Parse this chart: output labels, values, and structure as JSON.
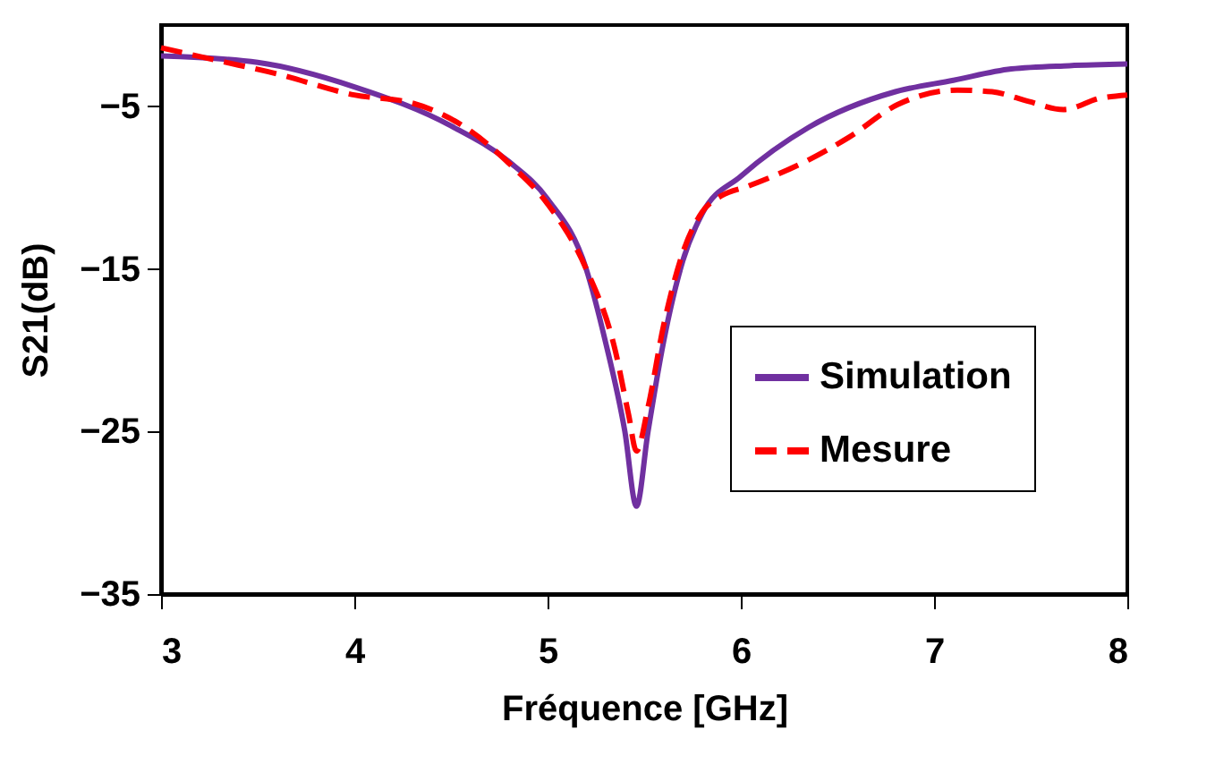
{
  "chart_data": {
    "type": "line",
    "xlabel": "Fréquence [GHz]",
    "ylabel": "S21(dB)",
    "xlim": [
      3,
      8
    ],
    "xticks": [
      3,
      4,
      5,
      6,
      7,
      8
    ],
    "ylim": [
      -35,
      0
    ],
    "yticks": [
      -35,
      -25,
      -15,
      -5
    ],
    "grid": false,
    "legend": "right",
    "marker": "none",
    "series": [
      {
        "name": "Simulation",
        "color": "#7030a0",
        "line_style": "solid",
        "x": [
          3,
          3.5,
          4,
          4.5,
          4.8,
          5.0,
          5.2,
          5.3,
          5.4,
          5.46,
          5.52,
          5.6,
          5.7,
          5.8,
          6.0,
          6.35,
          6.8,
          7.1,
          7.4,
          7.7,
          8
        ],
        "values": [
          -1.9,
          -2.3,
          -3.8,
          -6.2,
          -8.4,
          -10.7,
          -15,
          -19.5,
          -25,
          -29.6,
          -25,
          -19.5,
          -14.5,
          -11.6,
          -9.3,
          -6.3,
          -4.1,
          -3.4,
          -2.7,
          -2.5,
          -2.4
        ]
      },
      {
        "name": "Mesure",
        "color": "#ff0000",
        "line_style": "dashed",
        "x": [
          3,
          3.3,
          3.6,
          4.0,
          4.3,
          4.6,
          4.8,
          5.0,
          5.2,
          5.35,
          5.42,
          5.46,
          5.52,
          5.6,
          5.7,
          5.8,
          5.9,
          6.04,
          6.35,
          6.56,
          6.81,
          7.12,
          7.3,
          7.49,
          7.67,
          7.86,
          8
        ],
        "values": [
          -1.4,
          -2.2,
          -3.0,
          -4.3,
          -4.8,
          -6.5,
          -8.5,
          -11,
          -15,
          -20,
          -24,
          -26.2,
          -23.5,
          -18.5,
          -14,
          -11.5,
          -10.5,
          -9.9,
          -8.3,
          -6.9,
          -4.9,
          -4.0,
          -4.1,
          -4.7,
          -5.2,
          -4.5,
          -4.3
        ]
      }
    ]
  }
}
